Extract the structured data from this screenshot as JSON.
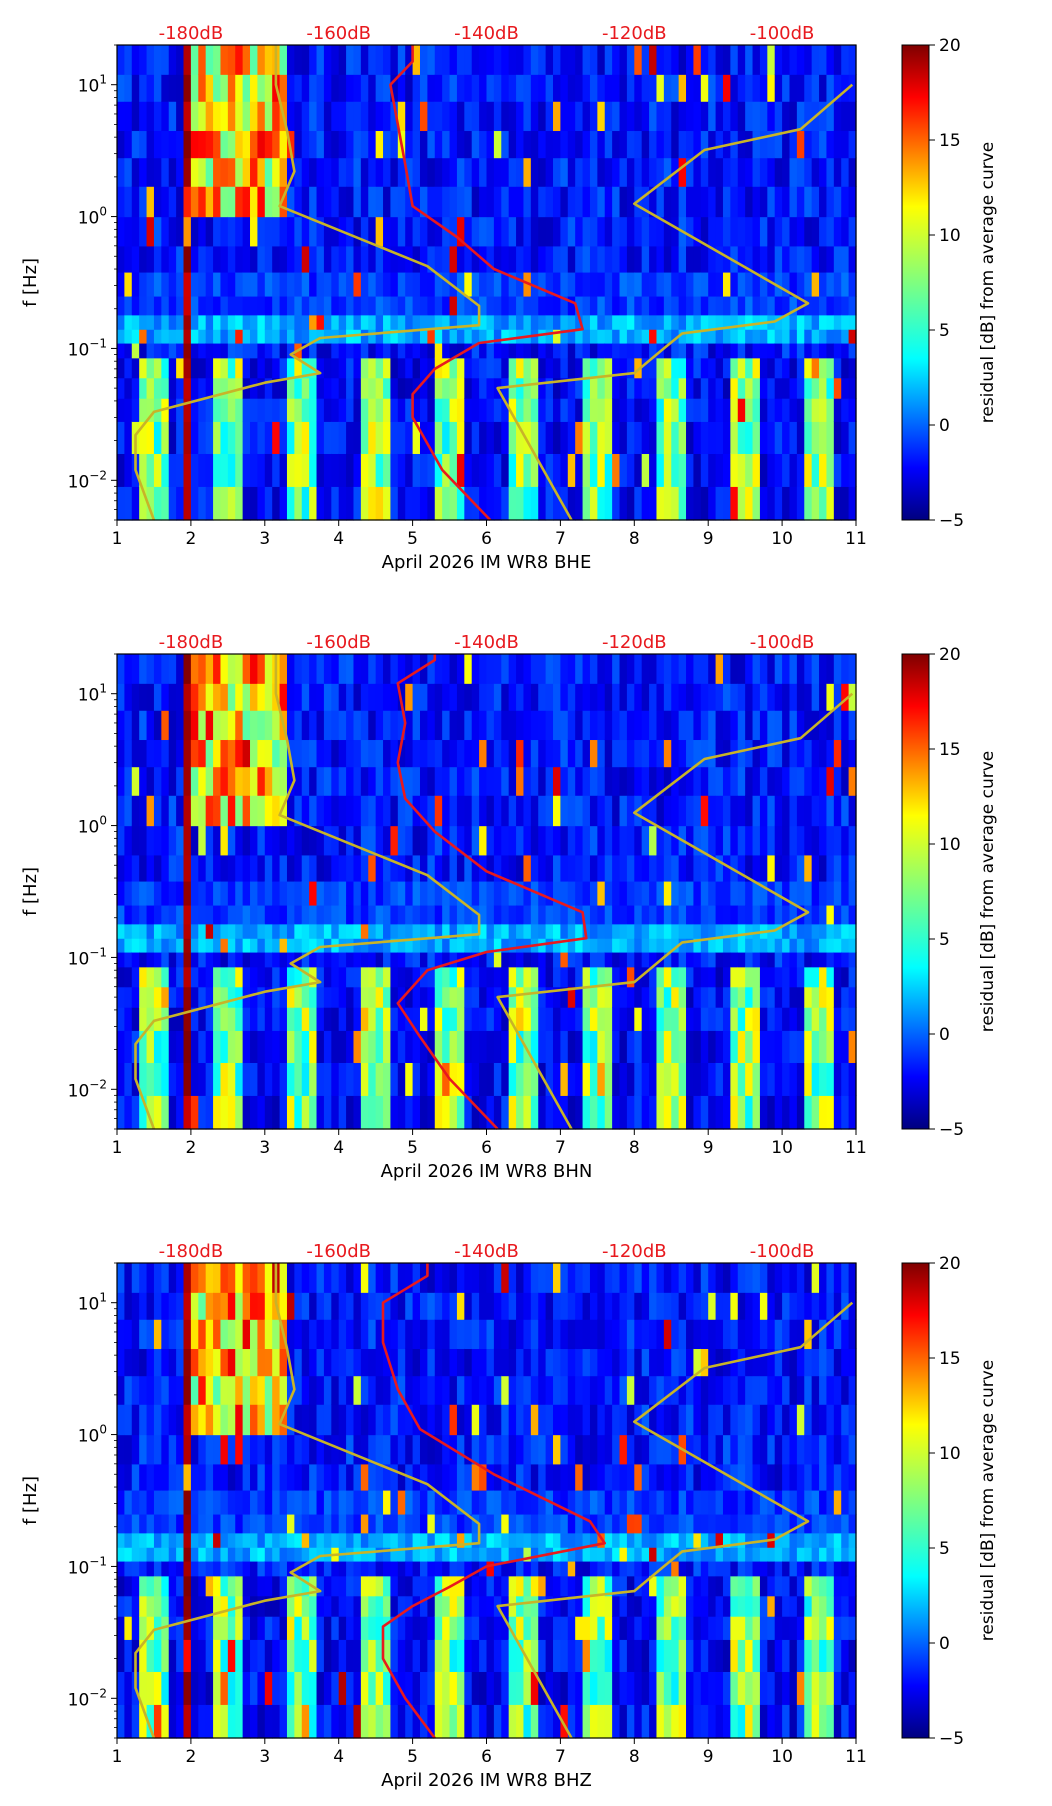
{
  "chart_data": [
    {
      "type": "heatmap",
      "panel": "BHE",
      "xlabel": "April 2026 IM WR8  BHE",
      "ylabel": "f [Hz]",
      "xlim": [
        1,
        11
      ],
      "x_ticks": [
        1,
        2,
        3,
        4,
        5,
        6,
        7,
        8,
        9,
        10,
        11
      ],
      "ylim_hz": [
        0.005,
        20
      ],
      "y_scale": "log",
      "y_ticks": [
        {
          "label": "10",
          "exp": "1",
          "value": 10
        },
        {
          "label": "10",
          "exp": "0",
          "value": 1
        },
        {
          "label": "10",
          "exp": "−1",
          "value": 0.1
        },
        {
          "label": "10",
          "exp": "−2",
          "value": 0.01
        }
      ],
      "db_axis_labels": [
        {
          "label": "-180dB",
          "day": 2.0
        },
        {
          "label": "-160dB",
          "day": 4.0
        },
        {
          "label": "-140dB",
          "day": 6.0
        },
        {
          "label": "-120dB",
          "day": 8.0
        },
        {
          "label": "-100dB",
          "day": 10.0
        }
      ],
      "colorbar": {
        "label": "residual [dB] from average curve",
        "min": -5,
        "max": 20,
        "ticks": [
          20,
          15,
          10,
          5,
          0,
          -5
        ],
        "colormap": "jet"
      },
      "noise_model_curve": {
        "color": "#c8b428",
        "points": [
          [
            1.5,
            0.005
          ],
          [
            1.25,
            0.012
          ],
          [
            1.25,
            0.022
          ],
          [
            1.5,
            0.033
          ],
          [
            3.0,
            0.055
          ],
          [
            3.75,
            0.065
          ],
          [
            3.35,
            0.09
          ],
          [
            3.75,
            0.12
          ],
          [
            5.9,
            0.15
          ],
          [
            5.9,
            0.21
          ],
          [
            5.2,
            0.42
          ],
          [
            3.2,
            1.2
          ],
          [
            3.4,
            2.2
          ],
          [
            3.3,
            4.5
          ],
          [
            3.15,
            10
          ],
          [
            3.15,
            20
          ]
        ]
      },
      "noise_model_curve_high": {
        "color": "#c8b428",
        "points": [
          [
            7.15,
            0.005
          ],
          [
            6.15,
            0.05
          ],
          [
            8.0,
            0.065
          ],
          [
            8.4,
            0.1
          ],
          [
            8.65,
            0.13
          ],
          [
            9.9,
            0.16
          ],
          [
            10.35,
            0.22
          ],
          [
            8.0,
            1.25
          ],
          [
            8.95,
            3.2
          ],
          [
            10.25,
            4.6
          ],
          [
            10.95,
            10
          ]
        ]
      },
      "average_psd_curve": {
        "color": "#e8191e",
        "points": [
          [
            6.05,
            0.005
          ],
          [
            5.4,
            0.012
          ],
          [
            5.0,
            0.03
          ],
          [
            5.0,
            0.045
          ],
          [
            5.3,
            0.07
          ],
          [
            5.9,
            0.11
          ],
          [
            7.3,
            0.14
          ],
          [
            7.2,
            0.22
          ],
          [
            6.1,
            0.4
          ],
          [
            5.6,
            0.7
          ],
          [
            5.0,
            1.2
          ],
          [
            4.9,
            2.5
          ],
          [
            4.8,
            5
          ],
          [
            4.7,
            10
          ],
          [
            5.0,
            15
          ],
          [
            5.0,
            20
          ]
        ]
      },
      "bands": [
        0.005,
        0.009,
        0.016,
        0.028,
        0.042,
        0.06,
        0.085,
        0.11,
        0.14,
        0.18,
        0.25,
        0.38,
        0.6,
        1.0,
        1.7,
        2.8,
        4.5,
        7.5,
        12,
        20
      ]
    },
    {
      "type": "heatmap",
      "panel": "BHN",
      "xlabel": "April 2026 IM WR8  BHN",
      "ylabel": "f [Hz]",
      "xlim": [
        1,
        11
      ],
      "x_ticks": [
        1,
        2,
        3,
        4,
        5,
        6,
        7,
        8,
        9,
        10,
        11
      ],
      "ylim_hz": [
        0.005,
        20
      ],
      "y_scale": "log",
      "y_ticks": [
        {
          "label": "10",
          "exp": "1",
          "value": 10
        },
        {
          "label": "10",
          "exp": "0",
          "value": 1
        },
        {
          "label": "10",
          "exp": "−1",
          "value": 0.1
        },
        {
          "label": "10",
          "exp": "−2",
          "value": 0.01
        }
      ],
      "db_axis_labels": [
        {
          "label": "-180dB",
          "day": 2.0
        },
        {
          "label": "-160dB",
          "day": 4.0
        },
        {
          "label": "-140dB",
          "day": 6.0
        },
        {
          "label": "-120dB",
          "day": 8.0
        },
        {
          "label": "-100dB",
          "day": 10.0
        }
      ],
      "colorbar": {
        "label": "residual [dB] from average curve",
        "min": -5,
        "max": 20,
        "ticks": [
          20,
          15,
          10,
          5,
          0,
          -5
        ],
        "colormap": "jet"
      },
      "noise_model_curve": {
        "color": "#c8b428",
        "points": [
          [
            1.5,
            0.005
          ],
          [
            1.25,
            0.012
          ],
          [
            1.25,
            0.022
          ],
          [
            1.5,
            0.033
          ],
          [
            3.0,
            0.055
          ],
          [
            3.75,
            0.065
          ],
          [
            3.35,
            0.09
          ],
          [
            3.75,
            0.12
          ],
          [
            5.9,
            0.15
          ],
          [
            5.9,
            0.21
          ],
          [
            5.2,
            0.42
          ],
          [
            3.2,
            1.2
          ],
          [
            3.4,
            2.2
          ],
          [
            3.3,
            4.5
          ],
          [
            3.15,
            10
          ],
          [
            3.15,
            20
          ]
        ]
      },
      "noise_model_curve_high": {
        "color": "#c8b428",
        "points": [
          [
            7.15,
            0.005
          ],
          [
            6.15,
            0.05
          ],
          [
            8.0,
            0.065
          ],
          [
            8.4,
            0.1
          ],
          [
            8.65,
            0.13
          ],
          [
            9.9,
            0.16
          ],
          [
            10.35,
            0.22
          ],
          [
            8.0,
            1.25
          ],
          [
            8.95,
            3.2
          ],
          [
            10.25,
            4.6
          ],
          [
            10.95,
            10
          ]
        ]
      },
      "average_psd_curve": {
        "color": "#e8191e",
        "points": [
          [
            6.15,
            0.005
          ],
          [
            5.5,
            0.012
          ],
          [
            5.1,
            0.025
          ],
          [
            4.8,
            0.045
          ],
          [
            5.2,
            0.08
          ],
          [
            6.0,
            0.11
          ],
          [
            7.35,
            0.14
          ],
          [
            7.3,
            0.22
          ],
          [
            6.0,
            0.45
          ],
          [
            5.3,
            0.9
          ],
          [
            4.9,
            1.6
          ],
          [
            4.8,
            3
          ],
          [
            4.9,
            6
          ],
          [
            4.8,
            12
          ],
          [
            5.3,
            18
          ],
          [
            5.3,
            20
          ]
        ]
      },
      "bands": [
        0.005,
        0.009,
        0.016,
        0.028,
        0.042,
        0.06,
        0.085,
        0.11,
        0.14,
        0.18,
        0.25,
        0.38,
        0.6,
        1.0,
        1.7,
        2.8,
        4.5,
        7.5,
        12,
        20
      ]
    },
    {
      "type": "heatmap",
      "panel": "BHZ",
      "xlabel": "April 2026 IM WR8  BHZ",
      "ylabel": "f [Hz]",
      "xlim": [
        1,
        11
      ],
      "x_ticks": [
        1,
        2,
        3,
        4,
        5,
        6,
        7,
        8,
        9,
        10,
        11
      ],
      "ylim_hz": [
        0.005,
        20
      ],
      "y_scale": "log",
      "y_ticks": [
        {
          "label": "10",
          "exp": "1",
          "value": 10
        },
        {
          "label": "10",
          "exp": "0",
          "value": 1
        },
        {
          "label": "10",
          "exp": "−1",
          "value": 0.1
        },
        {
          "label": "10",
          "exp": "−2",
          "value": 0.01
        }
      ],
      "db_axis_labels": [
        {
          "label": "-180dB",
          "day": 2.0
        },
        {
          "label": "-160dB",
          "day": 4.0
        },
        {
          "label": "-140dB",
          "day": 6.0
        },
        {
          "label": "-120dB",
          "day": 8.0
        },
        {
          "label": "-100dB",
          "day": 10.0
        }
      ],
      "colorbar": {
        "label": "residual [dB] from average curve",
        "min": -5,
        "max": 20,
        "ticks": [
          20,
          15,
          10,
          5,
          0,
          -5
        ],
        "colormap": "jet"
      },
      "noise_model_curve": {
        "color": "#c8b428",
        "points": [
          [
            1.5,
            0.005
          ],
          [
            1.25,
            0.012
          ],
          [
            1.25,
            0.022
          ],
          [
            1.5,
            0.033
          ],
          [
            3.0,
            0.055
          ],
          [
            3.75,
            0.065
          ],
          [
            3.35,
            0.09
          ],
          [
            3.75,
            0.12
          ],
          [
            5.9,
            0.15
          ],
          [
            5.9,
            0.21
          ],
          [
            5.2,
            0.42
          ],
          [
            3.2,
            1.2
          ],
          [
            3.4,
            2.2
          ],
          [
            3.3,
            4.5
          ],
          [
            3.15,
            10
          ],
          [
            3.15,
            20
          ]
        ]
      },
      "noise_model_curve_high": {
        "color": "#c8b428",
        "points": [
          [
            7.15,
            0.005
          ],
          [
            6.15,
            0.05
          ],
          [
            8.0,
            0.065
          ],
          [
            8.4,
            0.1
          ],
          [
            8.65,
            0.13
          ],
          [
            9.9,
            0.16
          ],
          [
            10.35,
            0.22
          ],
          [
            8.0,
            1.25
          ],
          [
            8.95,
            3.2
          ],
          [
            10.25,
            4.6
          ],
          [
            10.95,
            10
          ]
        ]
      },
      "average_psd_curve": {
        "color": "#e8191e",
        "points": [
          [
            5.3,
            0.005
          ],
          [
            4.9,
            0.01
          ],
          [
            4.6,
            0.02
          ],
          [
            4.6,
            0.035
          ],
          [
            5.0,
            0.05
          ],
          [
            5.5,
            0.07
          ],
          [
            6.0,
            0.1
          ],
          [
            7.6,
            0.15
          ],
          [
            7.4,
            0.22
          ],
          [
            6.1,
            0.5
          ],
          [
            5.1,
            1.1
          ],
          [
            4.8,
            2.2
          ],
          [
            4.6,
            5
          ],
          [
            4.6,
            10
          ],
          [
            5.2,
            16
          ],
          [
            5.2,
            20
          ]
        ]
      },
      "bands": [
        0.005,
        0.009,
        0.016,
        0.028,
        0.042,
        0.06,
        0.085,
        0.11,
        0.14,
        0.18,
        0.25,
        0.38,
        0.6,
        1.0,
        1.7,
        2.8,
        4.5,
        7.5,
        12,
        20
      ]
    }
  ]
}
